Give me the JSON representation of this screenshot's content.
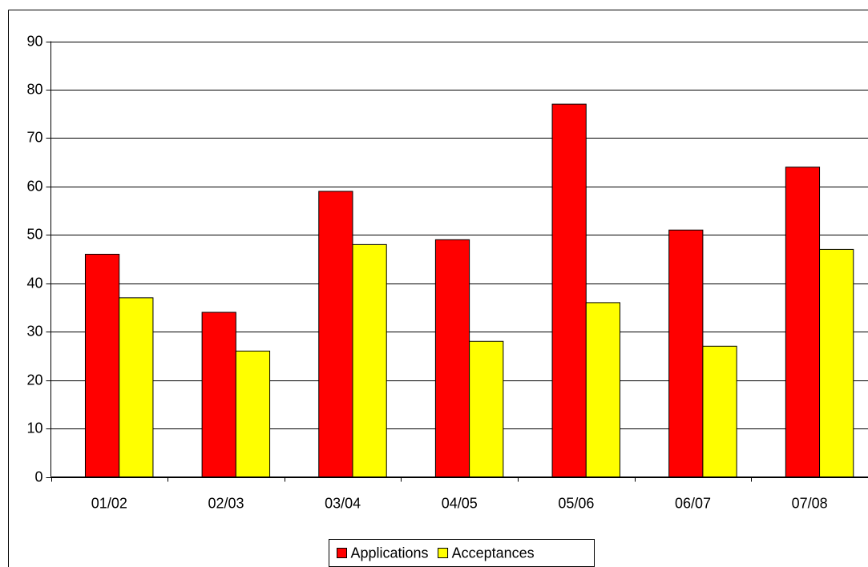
{
  "chart_data": {
    "type": "bar",
    "categories": [
      "01/02",
      "02/03",
      "03/04",
      "04/05",
      "05/06",
      "06/07",
      "07/08"
    ],
    "series": [
      {
        "name": "Applications",
        "color": "#ff0000",
        "values": [
          46,
          34,
          59,
          49,
          77,
          51,
          64
        ]
      },
      {
        "name": "Acceptances",
        "color": "#ffff00",
        "values": [
          37,
          26,
          48,
          28,
          36,
          27,
          47
        ]
      }
    ],
    "ylim": [
      0,
      90
    ],
    "yticks": [
      0,
      10,
      20,
      30,
      40,
      50,
      60,
      70,
      80,
      90
    ],
    "grid": true,
    "legend": "bottom"
  }
}
